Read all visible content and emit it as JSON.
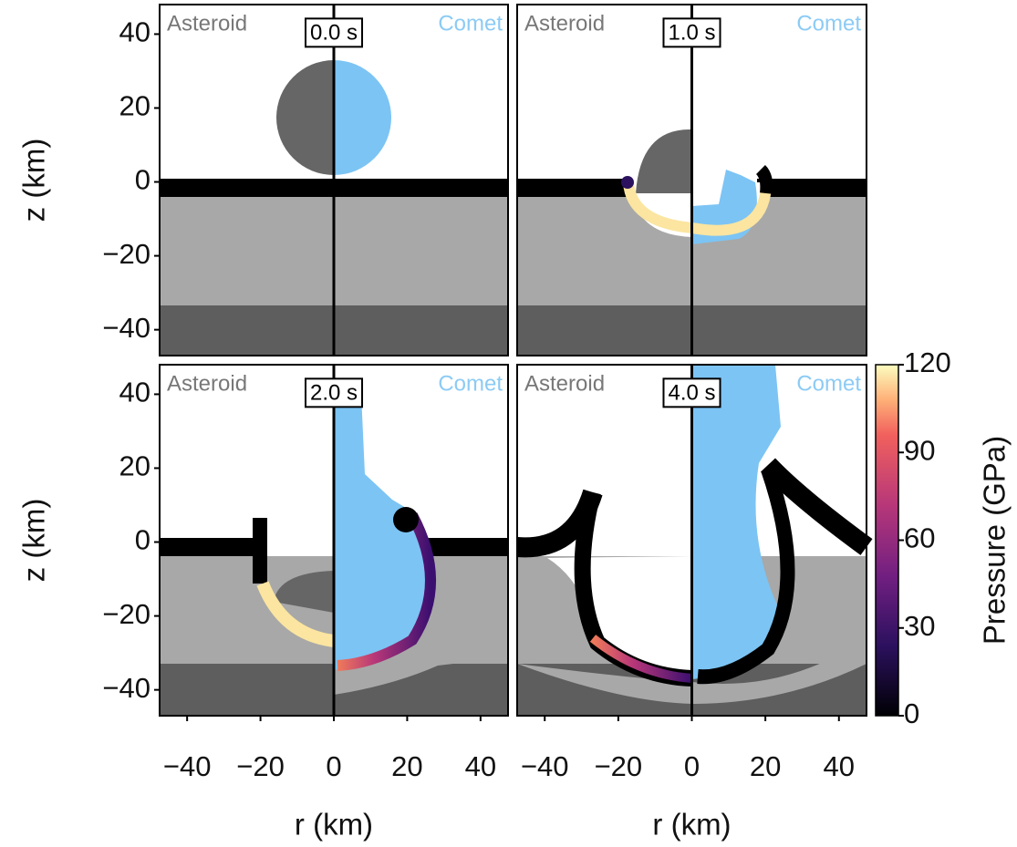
{
  "chart_data": [
    {
      "type": "image",
      "label_left": "Asteroid",
      "label_right": "Comet",
      "time": "0.0 s",
      "xlim": [
        -47.5,
        47.5
      ],
      "ylim": [
        -47,
        48
      ],
      "yticks": [
        {
          "value": 40,
          "label": "40"
        },
        {
          "value": 20,
          "label": "20"
        },
        {
          "value": 0,
          "label": "0"
        },
        {
          "value": -20,
          "label": "−20"
        },
        {
          "value": -40,
          "label": "−40"
        }
      ],
      "ylabel": "z (km)"
    },
    {
      "type": "image",
      "label_left": "Asteroid",
      "label_right": "Comet",
      "time": "1.0 s",
      "xlim": [
        -47.5,
        47.5
      ],
      "ylim": [
        -47,
        48
      ]
    },
    {
      "type": "image",
      "label_left": "Asteroid",
      "label_right": "Comet",
      "time": "2.0 s",
      "xlim": [
        -47.5,
        47.5
      ],
      "ylim": [
        -47,
        48
      ],
      "yticks": [
        {
          "value": 40,
          "label": "40"
        },
        {
          "value": 20,
          "label": "20"
        },
        {
          "value": 0,
          "label": "0"
        },
        {
          "value": -20,
          "label": "−20"
        },
        {
          "value": -40,
          "label": "−40"
        }
      ],
      "xticks": [
        {
          "value": -40,
          "label": "−40"
        },
        {
          "value": -20,
          "label": "−20"
        },
        {
          "value": 0,
          "label": "0"
        },
        {
          "value": 20,
          "label": "20"
        },
        {
          "value": 40,
          "label": "40"
        }
      ],
      "ylabel": "z (km)",
      "xlabel": "r (km)"
    },
    {
      "type": "image",
      "label_left": "Asteroid",
      "label_right": "Comet",
      "time": "4.0 s",
      "xlim": [
        -47.5,
        47.5
      ],
      "ylim": [
        -47,
        48
      ],
      "xticks": [
        {
          "value": -40,
          "label": "−40"
        },
        {
          "value": -20,
          "label": "−20"
        },
        {
          "value": 0,
          "label": "0"
        },
        {
          "value": 20,
          "label": "20"
        },
        {
          "value": 40,
          "label": "40"
        }
      ],
      "xlabel": "r (km)"
    },
    {
      "type": "colorbar",
      "label": "Pressure (GPa)",
      "ylim": [
        0,
        120
      ],
      "yticks": [
        0,
        30,
        60,
        90,
        120
      ]
    }
  ]
}
